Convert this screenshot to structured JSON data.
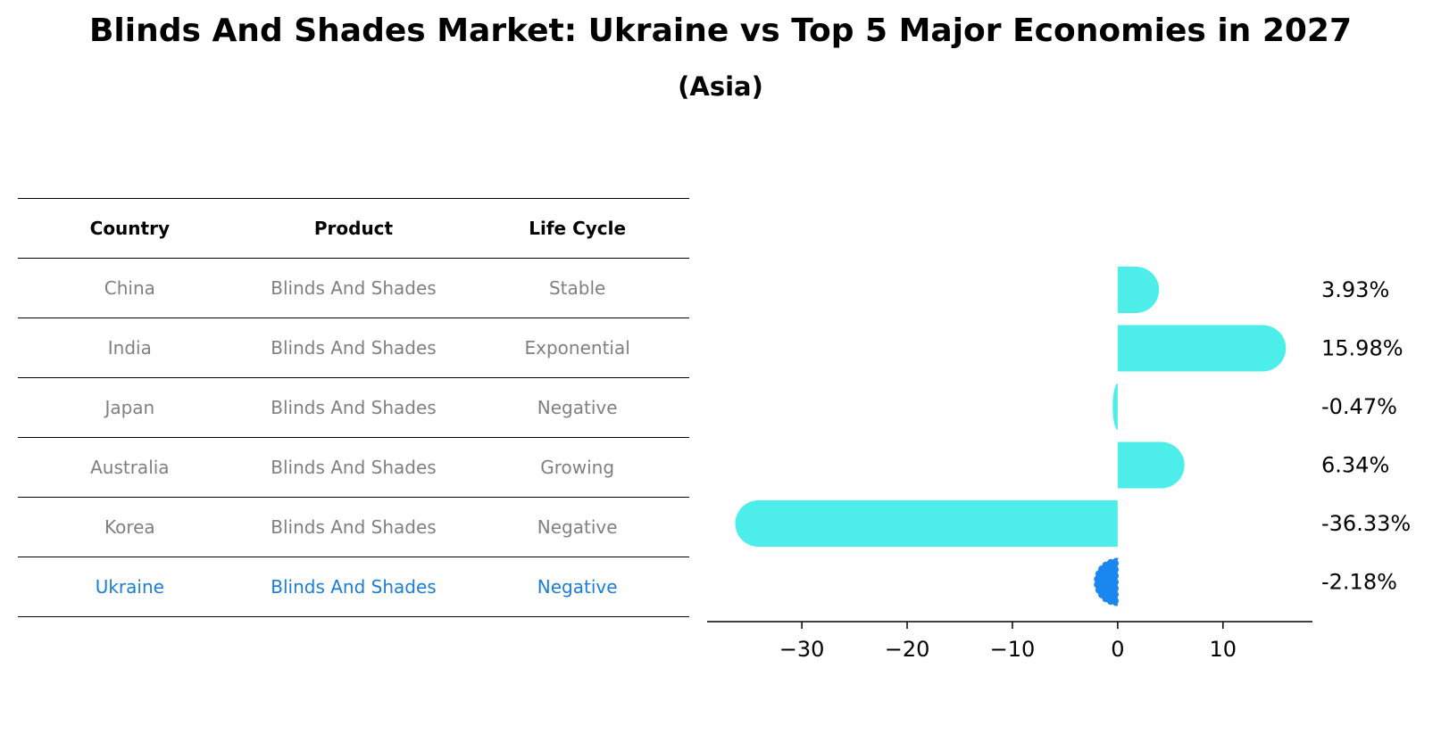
{
  "title": "Blinds And Shades Market: Ukraine vs Top 5 Major Economies in 2027",
  "subtitle": "(Asia)",
  "table": {
    "headers": [
      "Country",
      "Product",
      "Life Cycle"
    ],
    "rows": [
      [
        "China",
        "Blinds And Shades",
        "Stable"
      ],
      [
        "India",
        "Blinds And Shades",
        "Exponential"
      ],
      [
        "Japan",
        "Blinds And Shades",
        "Negative"
      ],
      [
        "Australia",
        "Blinds And Shades",
        "Growing"
      ],
      [
        "Korea",
        "Blinds And Shades",
        "Negative"
      ],
      [
        "Ukraine",
        "Blinds And Shades",
        "Negative"
      ]
    ],
    "highlight_row": 5
  },
  "colors": {
    "bar": "#4deeea",
    "highlight_bar": "#1a86f0",
    "row_text": "#808080",
    "highlight_text": "#1a7ed8"
  },
  "chart_data": {
    "type": "bar",
    "orientation": "horizontal",
    "categories": [
      "China",
      "India",
      "Japan",
      "Australia",
      "Korea",
      "Ukraine"
    ],
    "values": [
      3.93,
      15.98,
      -0.47,
      6.34,
      -36.33,
      -2.18
    ],
    "labels": [
      "3.93%",
      "15.98%",
      "-0.47%",
      "6.34%",
      "-36.33%",
      "-2.18%"
    ],
    "xlim": [
      -39,
      18.5
    ],
    "xticks": [
      -30,
      -20,
      -10,
      0,
      10
    ],
    "xtick_labels": [
      "−30",
      "−20",
      "−10",
      "0",
      "10"
    ],
    "highlight_index": 5
  }
}
